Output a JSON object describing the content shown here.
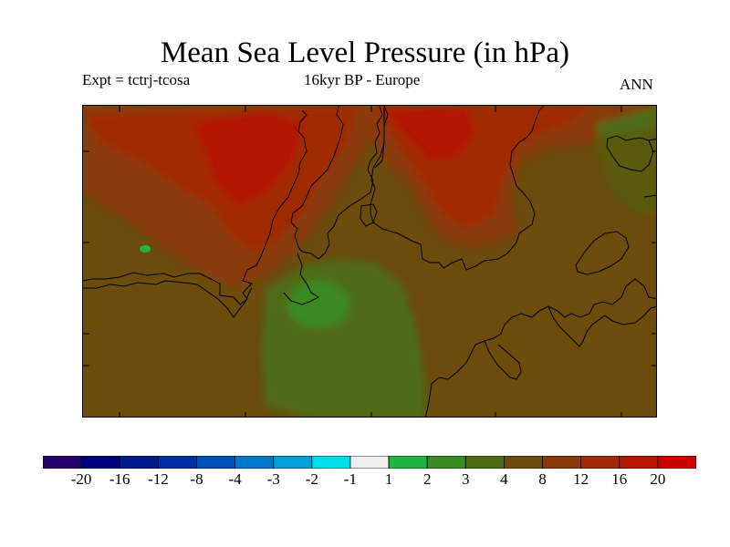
{
  "title": "Mean Sea Level Pressure (in hPa)",
  "subtitle_left": "Expt = tctrj-tcosa",
  "subtitle_center": "16kyr BP - Europe",
  "subtitle_right": "ANN",
  "map": {
    "region": "Europe",
    "field": "Mean sea level pressure difference",
    "units": "hPa"
  },
  "colorbar": {
    "labels": [
      "-20",
      "-16",
      "-12",
      "-8",
      "-4",
      "-3",
      "-2",
      "-1",
      "1",
      "2",
      "3",
      "4",
      "8",
      "12",
      "16",
      "20"
    ],
    "colors": [
      "#24006b",
      "#00007d",
      "#001b8c",
      "#002ea3",
      "#0050b8",
      "#0078c8",
      "#00a0d8",
      "#00dce8",
      "#eeeeee",
      "#1db540",
      "#3b8a22",
      "#4f6a12",
      "#6b4c0c",
      "#8a3a0a",
      "#a02a06",
      "#b41804",
      "#cc0000"
    ]
  },
  "palette": {
    "ocean_bg": "#6b4c0c",
    "coast": "#000000"
  }
}
